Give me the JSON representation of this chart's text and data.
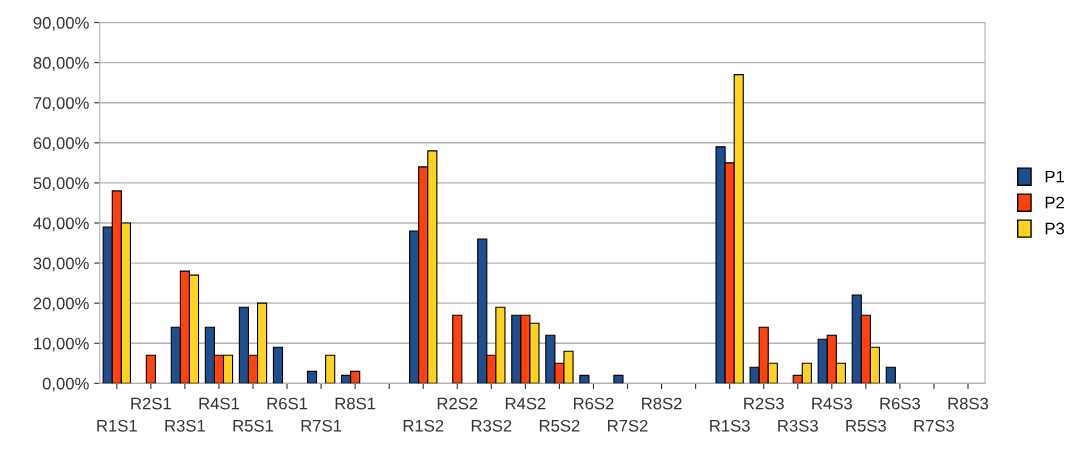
{
  "chart_data": {
    "type": "bar",
    "categories": [
      "R1S1",
      "R2S1",
      "R3S1",
      "R4S1",
      "R5S1",
      "R6S1",
      "R7S1",
      "R8S1",
      null,
      "R1S2",
      "R2S2",
      "R3S2",
      "R4S2",
      "R5S2",
      "R6S2",
      "R7S2",
      "R8S2",
      null,
      "R1S3",
      "R2S3",
      "R3S3",
      "R4S3",
      "R5S3",
      "R6S3",
      "R7S3",
      "R8S3"
    ],
    "series": [
      {
        "name": "P1",
        "color": "#1f4e8c",
        "values": [
          39,
          0,
          14,
          14,
          19,
          9,
          3,
          2,
          null,
          38,
          0,
          36,
          17,
          12,
          2,
          2,
          0,
          null,
          59,
          4,
          0,
          11,
          22,
          4,
          0,
          0
        ]
      },
      {
        "name": "P2",
        "color": "#ff420e",
        "values": [
          48,
          7,
          28,
          7,
          7,
          0,
          0,
          3,
          null,
          54,
          17,
          7,
          17,
          5,
          0,
          0,
          0,
          null,
          55,
          14,
          2,
          12,
          17,
          0,
          0,
          0
        ]
      },
      {
        "name": "P3",
        "color": "#ffd320",
        "values": [
          40,
          0,
          27,
          7,
          20,
          0,
          7,
          0,
          null,
          58,
          0,
          19,
          15,
          8,
          0,
          0,
          0,
          null,
          77,
          5,
          5,
          5,
          9,
          0,
          0,
          0
        ]
      }
    ],
    "ylim": [
      0,
      90
    ],
    "yticks": [
      {
        "value": 0,
        "label": "0,00%"
      },
      {
        "value": 10,
        "label": "10,00%"
      },
      {
        "value": 20,
        "label": "20,00%"
      },
      {
        "value": 30,
        "label": "30,00%"
      },
      {
        "value": 40,
        "label": "40,00%"
      },
      {
        "value": 50,
        "label": "50,00%"
      },
      {
        "value": 60,
        "label": "60,00%"
      },
      {
        "value": 70,
        "label": "70,00%"
      },
      {
        "value": 80,
        "label": "80,00%"
      },
      {
        "value": 90,
        "label": "90,00%"
      }
    ],
    "grid": "y",
    "legend": "right"
  }
}
